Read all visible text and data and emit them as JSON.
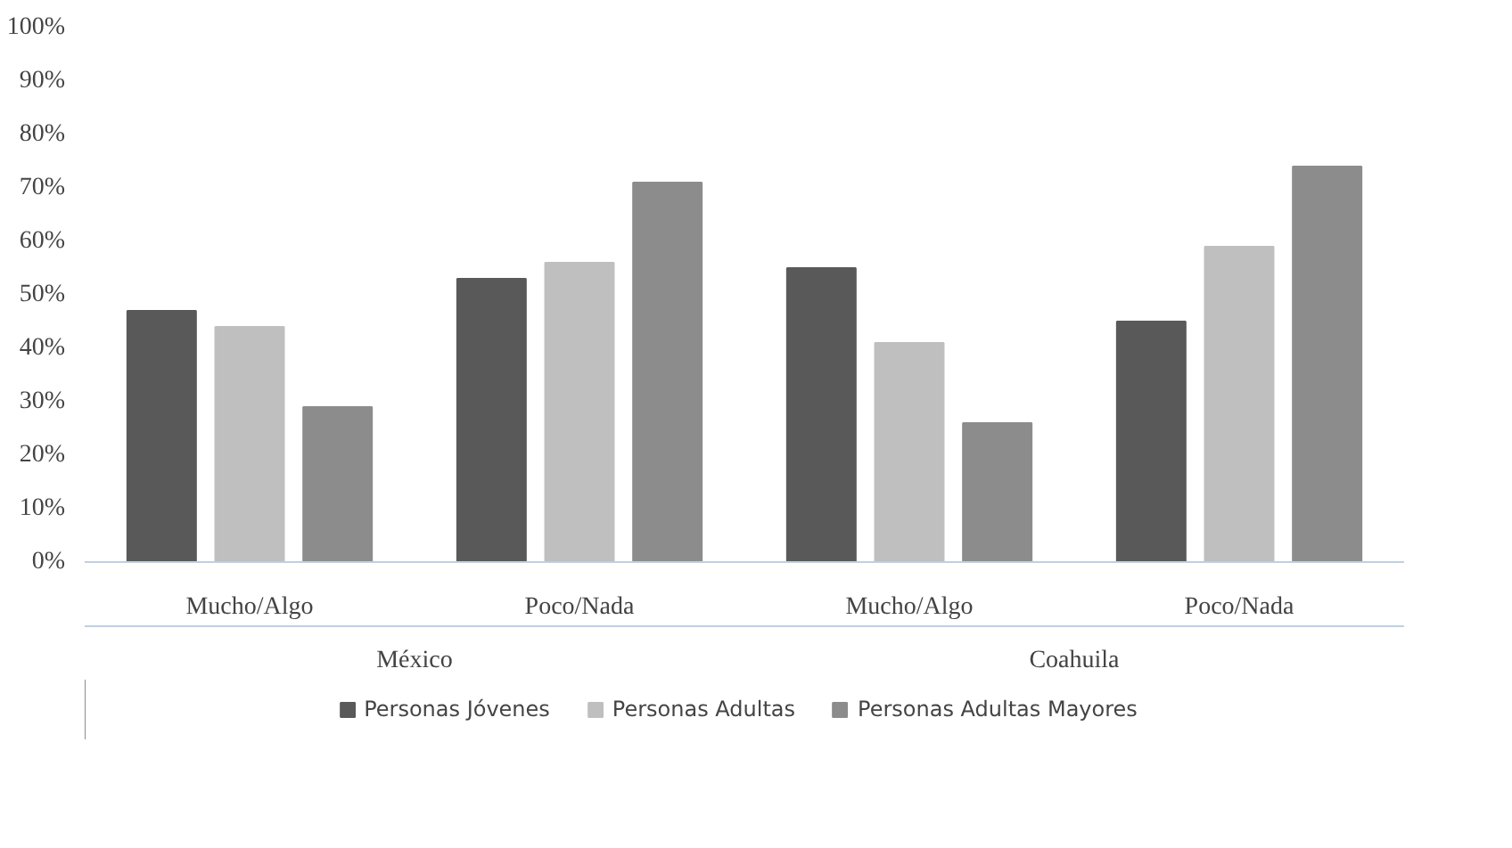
{
  "chart_data": {
    "type": "bar",
    "categories": [
      "Mucho/Algo",
      "Poco/Nada",
      "Mucho/Algo",
      "Poco/Nada"
    ],
    "annotations": [
      "México",
      "Coahuila"
    ],
    "series": [
      {
        "name": "Personas Jóvenes",
        "color": "#595959",
        "values": [
          47,
          53,
          55,
          45
        ]
      },
      {
        "name": "Personas Adultas",
        "color": "#bfbfbf",
        "values": [
          44,
          56,
          41,
          59
        ]
      },
      {
        "name": "Personas Adultas Mayores",
        "color": "#8c8c8c",
        "values": [
          29,
          71,
          26,
          74
        ]
      }
    ],
    "ylim": [
      0,
      100
    ],
    "yticks": [
      {
        "value": 0,
        "label": "0%"
      },
      {
        "value": 10,
        "label": "10%"
      },
      {
        "value": 20,
        "label": "20%"
      },
      {
        "value": 30,
        "label": "30%"
      },
      {
        "value": 40,
        "label": "40%"
      },
      {
        "value": 50,
        "label": "50%"
      },
      {
        "value": 60,
        "label": "60%"
      },
      {
        "value": 70,
        "label": "70%"
      },
      {
        "value": 80,
        "label": "80%"
      },
      {
        "value": 90,
        "label": "90%"
      },
      {
        "value": 100,
        "label": "100%"
      }
    ],
    "grid": false,
    "legend": "bottom"
  }
}
